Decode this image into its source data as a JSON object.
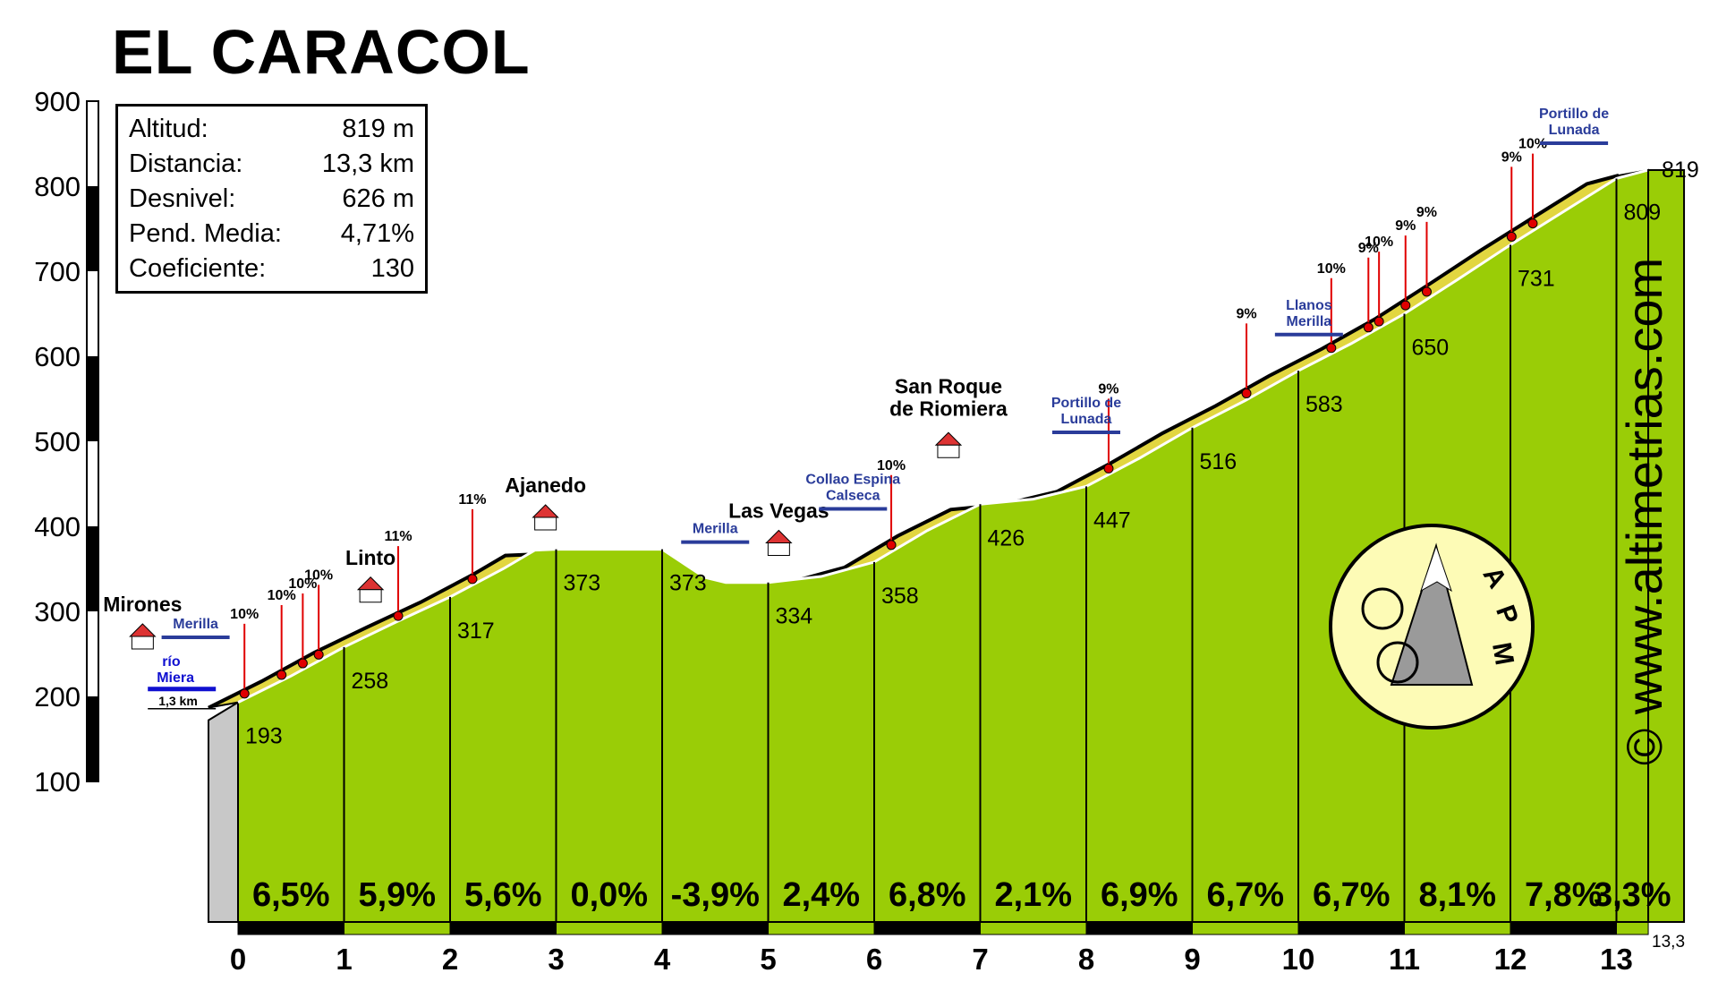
{
  "chart_data": {
    "type": "area",
    "title": "EL CARACOL",
    "stats": [
      {
        "label": "Altitud:",
        "value": "819 m"
      },
      {
        "label": "Distancia:",
        "value": "13,3 km"
      },
      {
        "label": "Desnivel:",
        "value": "626 m"
      },
      {
        "label": "Pend. Media:",
        "value": "4,71%"
      },
      {
        "label": "Coeficiente:",
        "value": "130"
      }
    ],
    "x_ticks": [
      "0",
      "1",
      "2",
      "3",
      "4",
      "5",
      "6",
      "7",
      "8",
      "9",
      "10",
      "11",
      "12",
      "13"
    ],
    "x_end_label": "13,3",
    "y_ticks": [
      "100",
      "200",
      "300",
      "400",
      "500",
      "600",
      "700",
      "800",
      "900"
    ],
    "xlim": [
      0,
      13.3
    ],
    "ylim": [
      100,
      900
    ],
    "profile": [
      [
        0,
        193
      ],
      [
        0.5,
        224
      ],
      [
        1,
        258
      ],
      [
        1.5,
        288
      ],
      [
        2,
        317
      ],
      [
        2.5,
        350
      ],
      [
        2.8,
        372
      ],
      [
        3,
        373
      ],
      [
        3.5,
        373
      ],
      [
        4,
        373
      ],
      [
        4.4,
        340
      ],
      [
        4.6,
        334
      ],
      [
        5,
        334
      ],
      [
        5.5,
        341
      ],
      [
        6,
        358
      ],
      [
        6.5,
        395
      ],
      [
        7,
        426
      ],
      [
        7.5,
        432
      ],
      [
        8,
        447
      ],
      [
        8.5,
        480
      ],
      [
        9,
        516
      ],
      [
        9.5,
        548
      ],
      [
        10,
        583
      ],
      [
        10.5,
        615
      ],
      [
        11,
        650
      ],
      [
        11.5,
        690
      ],
      [
        12,
        731
      ],
      [
        12.5,
        770
      ],
      [
        13,
        809
      ],
      [
        13.3,
        819
      ]
    ],
    "km_points": [
      {
        "x": 0,
        "label": "193"
      },
      {
        "x": 1,
        "label": "258"
      },
      {
        "x": 2,
        "label": "317"
      },
      {
        "x": 3,
        "label": "373"
      },
      {
        "x": 4,
        "label": "373"
      },
      {
        "x": 5,
        "label": "334"
      },
      {
        "x": 6,
        "label": "358"
      },
      {
        "x": 7,
        "label": "426"
      },
      {
        "x": 8,
        "label": "447"
      },
      {
        "x": 9,
        "label": "516"
      },
      {
        "x": 10,
        "label": "583"
      },
      {
        "x": 11,
        "label": "650"
      },
      {
        "x": 12,
        "label": "731"
      },
      {
        "x": 13,
        "label": "809"
      }
    ],
    "end_label": "819",
    "segment_gradients": [
      "6,5%",
      "5,9%",
      "5,6%",
      "0,0%",
      "-3,9%",
      "2,4%",
      "6,8%",
      "2,1%",
      "6,9%",
      "6,7%",
      "6,7%",
      "8,1%",
      "7,8%",
      "3,3%"
    ],
    "places": [
      {
        "name": "Mirones",
        "x": -0.9,
        "alt": 300
      },
      {
        "name": "Linto",
        "x": 1.25,
        "alt": 355
      },
      {
        "name": "Ajanedo",
        "x": 2.9,
        "alt": 440
      },
      {
        "name": "Las Vegas",
        "x": 5.1,
        "alt": 410
      },
      {
        "name": "San Roque de Riomiera",
        "x": 6.7,
        "alt": 525
      }
    ],
    "signs": [
      {
        "text": "Merilla",
        "x": -0.4,
        "alt": 280
      },
      {
        "text": "Merilla",
        "x": 4.5,
        "alt": 392
      },
      {
        "text": "Collao Espina Calseca",
        "x": 5.8,
        "alt": 450
      },
      {
        "text": "Portillo de Lunada",
        "x": 8.0,
        "alt": 540
      },
      {
        "text": "Llanos Merilla",
        "x": 10.1,
        "alt": 655
      },
      {
        "text": "Portillo de Lunada",
        "x": 12.6,
        "alt": 880
      }
    ],
    "river": {
      "name": "río Miera",
      "dist": "1,3 km"
    },
    "ramps": [
      {
        "x": 0.2,
        "label": "10%"
      },
      {
        "x": 0.55,
        "label": "10%"
      },
      {
        "x": 0.75,
        "label": "10%"
      },
      {
        "x": 0.9,
        "label": "10%"
      },
      {
        "x": 1.65,
        "label": "11%"
      },
      {
        "x": 2.35,
        "label": "11%"
      },
      {
        "x": 6.3,
        "label": "10%"
      },
      {
        "x": 8.35,
        "label": "9%"
      },
      {
        "x": 9.65,
        "label": "9%"
      },
      {
        "x": 10.45,
        "label": "10%"
      },
      {
        "x": 10.8,
        "label": "9%"
      },
      {
        "x": 10.9,
        "label": "10%"
      },
      {
        "x": 11.15,
        "label": "9%"
      },
      {
        "x": 11.35,
        "label": "9%"
      },
      {
        "x": 12.15,
        "label": "9%"
      },
      {
        "x": 12.35,
        "label": "10%"
      }
    ],
    "logo_text": "APM"
  },
  "watermark": "© www.altimetrias.com"
}
